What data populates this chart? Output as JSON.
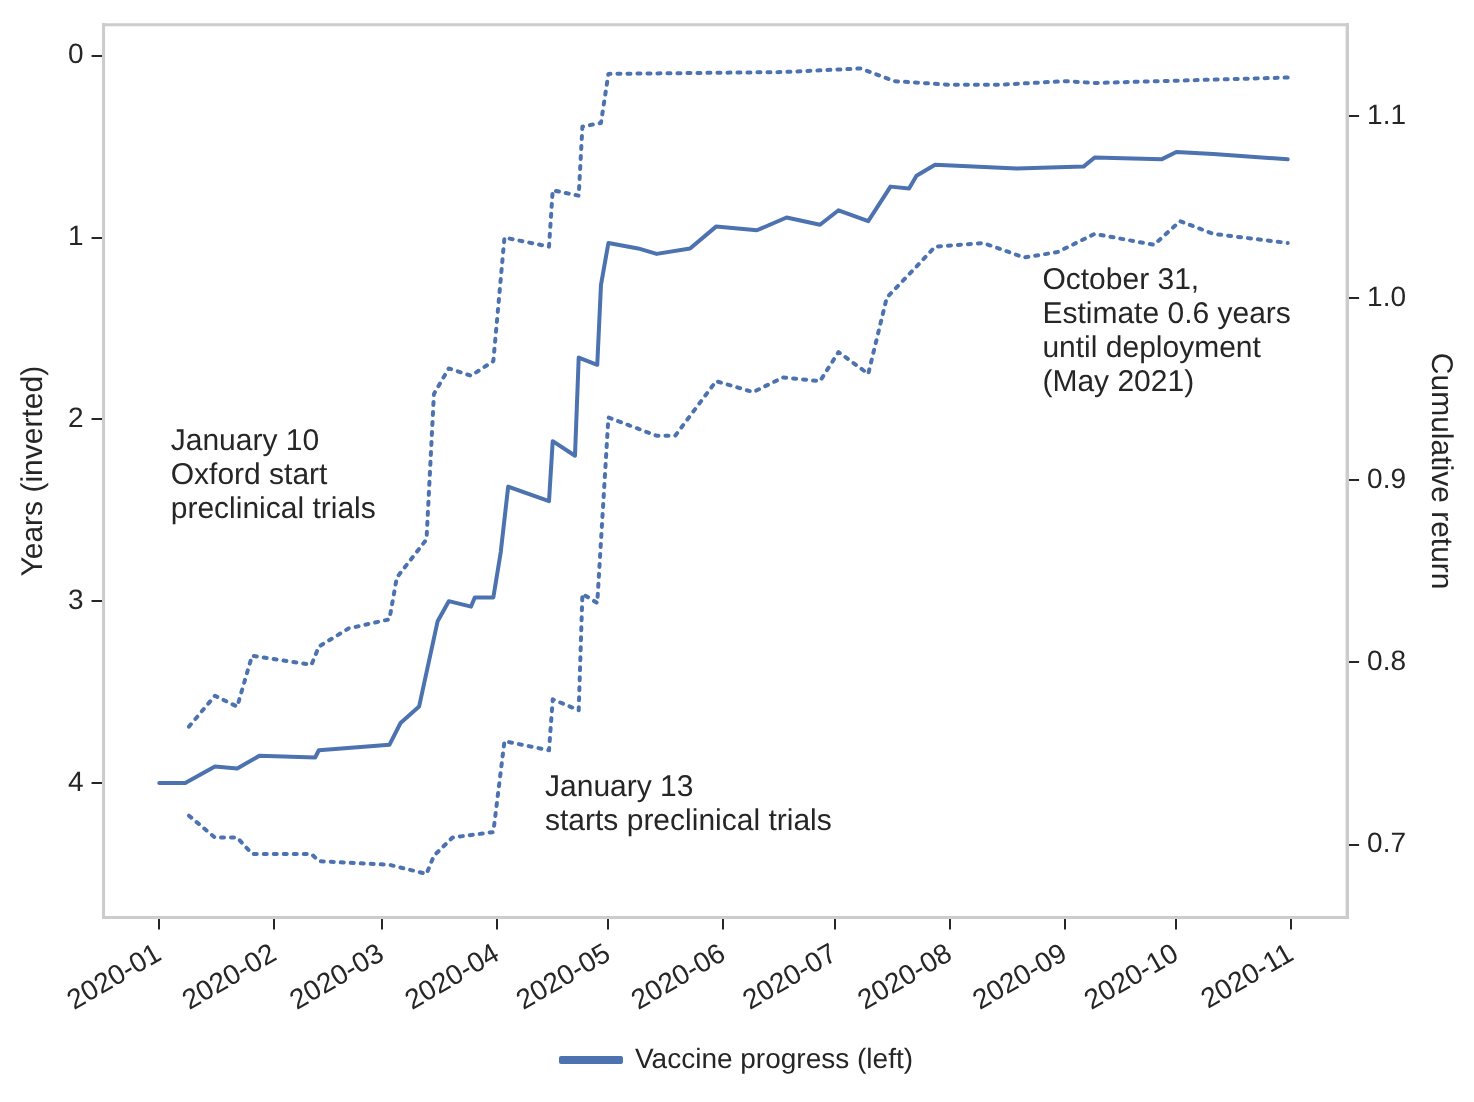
{
  "chart_data": {
    "type": "line",
    "xlabel": null,
    "ylabel": "Years (inverted)",
    "y2label": "Cumulative return",
    "xlim": [
      "2019-12-17",
      "2020-11-16"
    ],
    "xticks": [
      "2020-01",
      "2020-02",
      "2020-03",
      "2020-04",
      "2020-05",
      "2020-06",
      "2020-07",
      "2020-08",
      "2020-09",
      "2020-10",
      "2020-11"
    ],
    "ylim": [
      4.74,
      -0.17
    ],
    "yticks": [
      0,
      1,
      2,
      3,
      4
    ],
    "y2lim": [
      0.66,
      1.15
    ],
    "y2ticks": [
      0.7,
      0.8,
      0.9,
      {
        "value": 1,
        "label": "1.0"
      },
      1.1
    ],
    "grid": false,
    "legend": "bottom",
    "marker": "none",
    "series": [
      {
        "name": "Vaccine progress (left)",
        "color": "#4c72b0",
        "line_style": "solid",
        "x": [
          "2020-01-01",
          "2020-01-08",
          "2020-01-16",
          "2020-01-22",
          "2020-01-28",
          "2020-02-12",
          "2020-02-13",
          "2020-02-26",
          "2020-03-03",
          "2020-03-06",
          "2020-03-11",
          "2020-03-16",
          "2020-03-19",
          "2020-03-25",
          "2020-03-26",
          "2020-03-31",
          "2020-04-02",
          "2020-04-04",
          "2020-04-15",
          "2020-04-16",
          "2020-04-22",
          "2020-04-23",
          "2020-04-28",
          "2020-04-29",
          "2020-05-01",
          "2020-05-09",
          "2020-05-14",
          "2020-05-23",
          "2020-05-30",
          "2020-06-10",
          "2020-06-18",
          "2020-06-27",
          "2020-07-02",
          "2020-07-10",
          "2020-07-16",
          "2020-07-21",
          "2020-07-23",
          "2020-07-28",
          "2020-08-19",
          "2020-09-06",
          "2020-09-09",
          "2020-09-27",
          "2020-10-01",
          "2020-10-11",
          "2020-10-31"
        ],
        "values": [
          4.0,
          4.0,
          3.91,
          3.92,
          3.85,
          3.86,
          3.82,
          3.8,
          3.79,
          3.67,
          3.58,
          3.11,
          3.0,
          3.03,
          2.98,
          2.98,
          2.73,
          2.37,
          2.45,
          2.12,
          2.2,
          1.66,
          1.7,
          1.26,
          1.03,
          1.06,
          1.09,
          1.06,
          0.94,
          0.96,
          0.89,
          0.93,
          0.85,
          0.91,
          0.72,
          0.73,
          0.66,
          0.6,
          0.62,
          0.61,
          0.56,
          0.57,
          0.53,
          0.54,
          0.57
        ]
      },
      {
        "color": "#4c72b0",
        "line_style": "dotted",
        "x": [
          "2020-01-09",
          "2020-01-16",
          "2020-01-22",
          "2020-01-26",
          "2020-02-11",
          "2020-02-13",
          "2020-02-21",
          "2020-03-03",
          "2020-03-05",
          "2020-03-13",
          "2020-03-15",
          "2020-03-19",
          "2020-03-25",
          "2020-03-31",
          "2020-04-03",
          "2020-04-15",
          "2020-04-16",
          "2020-04-23",
          "2020-04-24",
          "2020-04-29",
          "2020-05-01",
          "2020-06-17",
          "2020-07-08",
          "2020-07-17",
          "2020-08-01",
          "2020-08-14",
          "2020-09-01",
          "2020-09-09",
          "2020-10-31"
        ],
        "values": [
          3.69,
          3.52,
          3.58,
          3.3,
          3.35,
          3.25,
          3.15,
          3.1,
          2.87,
          2.66,
          1.86,
          1.72,
          1.76,
          1.68,
          1.0,
          1.05,
          0.74,
          0.77,
          0.39,
          0.37,
          0.1,
          0.09,
          0.07,
          0.14,
          0.16,
          0.16,
          0.14,
          0.15,
          0.12
        ]
      },
      {
        "color": "#4c72b0",
        "line_style": "dotted",
        "x": [
          "2020-01-09",
          "2020-01-16",
          "2020-01-22",
          "2020-01-26",
          "2020-02-11",
          "2020-02-13",
          "2020-03-03",
          "2020-03-13",
          "2020-03-15",
          "2020-03-20",
          "2020-03-31",
          "2020-04-03",
          "2020-04-15",
          "2020-04-16",
          "2020-04-23",
          "2020-04-24",
          "2020-04-28",
          "2020-05-01",
          "2020-05-14",
          "2020-05-19",
          "2020-05-30",
          "2020-06-09",
          "2020-06-17",
          "2020-06-27",
          "2020-07-02",
          "2020-07-10",
          "2020-07-15",
          "2020-07-23",
          "2020-07-28",
          "2020-08-10",
          "2020-08-21",
          "2020-08-30",
          "2020-09-09",
          "2020-09-25",
          "2020-10-02",
          "2020-10-11",
          "2020-10-31"
        ],
        "values": [
          4.18,
          4.3,
          4.3,
          4.39,
          4.39,
          4.43,
          4.45,
          4.5,
          4.4,
          4.3,
          4.27,
          3.77,
          3.82,
          3.54,
          3.6,
          2.96,
          3.01,
          1.99,
          2.09,
          2.09,
          1.79,
          1.85,
          1.77,
          1.79,
          1.63,
          1.75,
          1.33,
          1.16,
          1.05,
          1.03,
          1.11,
          1.08,
          0.98,
          1.04,
          0.91,
          0.98,
          1.03
        ]
      }
    ],
    "annotations": [
      "January 10\nOxford start\npreclinical trials",
      "January 13\nstarts preclinical trials",
      "October 31,\nEstimate 0.6 years\nuntil deployment\n(May 2021)"
    ]
  }
}
